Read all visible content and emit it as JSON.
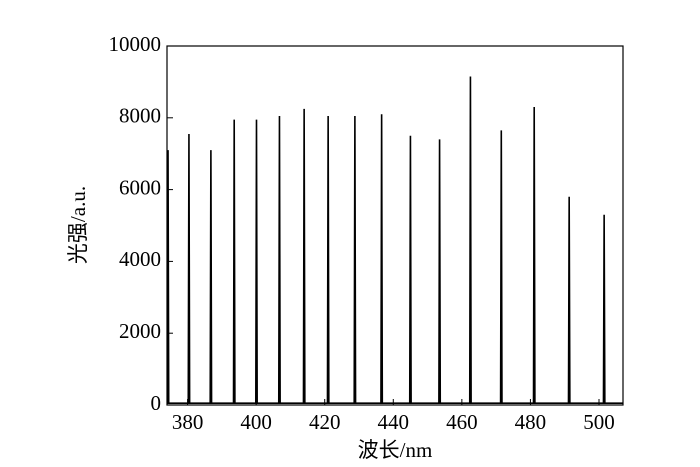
{
  "chart_data": {
    "type": "line",
    "x_label": "波长/nm",
    "y_label": "光强/a.u.",
    "x": [
      374,
      374.1,
      374.3,
      374.5,
      380.2,
      380.4,
      380.6,
      386.6,
      386.8,
      387.0,
      393.4,
      393.6,
      393.8,
      399.9,
      400.1,
      400.3,
      406.6,
      406.8,
      407.0,
      413.8,
      414.0,
      414.2,
      420.8,
      421.0,
      421.2,
      428.6,
      428.8,
      429.0,
      436.4,
      436.6,
      436.8,
      444.8,
      445.0,
      445.2,
      453.3,
      453.5,
      453.7,
      462.3,
      462.5,
      462.7,
      471.3,
      471.5,
      471.7,
      480.9,
      481.1,
      481.3,
      491.1,
      491.3,
      491.5,
      501.3,
      501.5,
      501.7,
      507
    ],
    "values": [
      50,
      50,
      7100,
      50,
      50,
      7550,
      50,
      50,
      7100,
      50,
      50,
      7950,
      50,
      50,
      7950,
      50,
      50,
      8050,
      50,
      50,
      8250,
      50,
      50,
      8050,
      50,
      50,
      8050,
      50,
      50,
      8100,
      50,
      50,
      7500,
      50,
      50,
      7400,
      50,
      50,
      9150,
      50,
      50,
      7650,
      50,
      50,
      8300,
      50,
      50,
      5800,
      50,
      50,
      5300,
      50,
      50
    ],
    "color": "#000000",
    "xlim": [
      374,
      507
    ],
    "xticks": [
      380,
      400,
      420,
      440,
      460,
      480,
      500
    ],
    "ylim": [
      0,
      10000
    ],
    "yticks": [
      0,
      2000,
      4000,
      6000,
      8000,
      10000
    ],
    "grid": false
  }
}
